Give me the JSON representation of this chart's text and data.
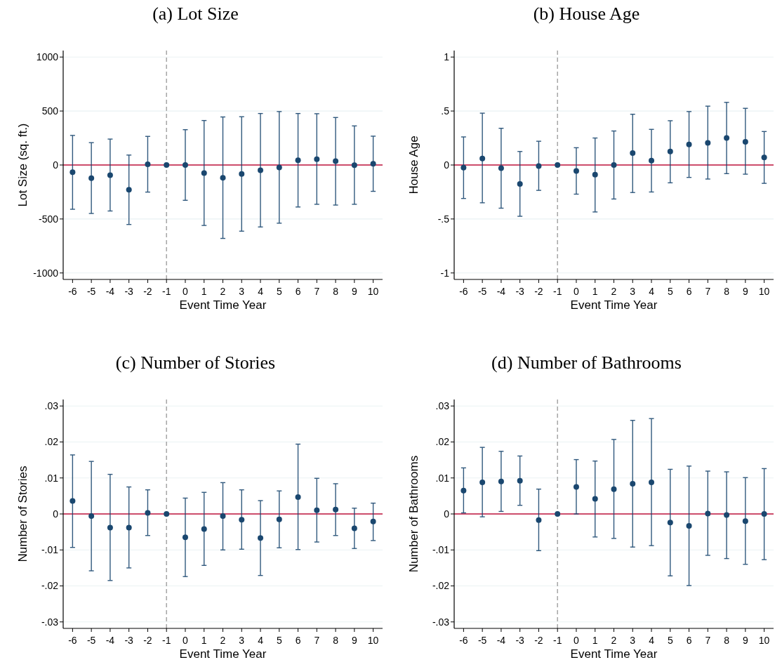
{
  "chart_data": [
    {
      "type": "scatter",
      "title": "(a) Lot Size",
      "xlabel": "Event Time Year",
      "ylabel": "Lot Size (sq. ft.)",
      "x": [
        -6,
        -5,
        -4,
        -3,
        -2,
        -1,
        0,
        1,
        2,
        3,
        4,
        5,
        6,
        7,
        8,
        9,
        10
      ],
      "xlim": [
        -6.5,
        10.5
      ],
      "xticks": [
        -6,
        -5,
        -4,
        -3,
        -2,
        -1,
        0,
        1,
        2,
        3,
        4,
        5,
        6,
        7,
        8,
        9,
        10
      ],
      "ylim": [
        -1060,
        1060
      ],
      "yticks": [
        -1000,
        -500,
        0,
        500,
        1000
      ],
      "grid": "y",
      "marker": "circle",
      "series": [
        {
          "color": "#1a476f",
          "values": [
            -67,
            -122,
            -94,
            -230,
            7,
            0,
            0,
            -74,
            -118,
            -83,
            -48,
            -23,
            44,
            53,
            35,
            -2,
            12
          ],
          "errors": [
            [
              -410,
              274
            ],
            [
              -449,
              207
            ],
            [
              -426,
              240
            ],
            [
              -551,
              92
            ],
            [
              -251,
              265
            ],
            null,
            [
              -327,
              327
            ],
            [
              -560,
              412
            ],
            [
              -680,
              445
            ],
            [
              -613,
              447
            ],
            [
              -574,
              477
            ],
            [
              -539,
              495
            ],
            [
              -389,
              477
            ],
            [
              -364,
              475
            ],
            [
              -371,
              440
            ],
            [
              -364,
              362
            ],
            [
              -244,
              267
            ]
          ]
        }
      ],
      "ref_lines": [
        {
          "axis": "x",
          "value": -1,
          "color": "#a6a6a6",
          "line_style": "dashed"
        },
        {
          "axis": "y",
          "value": 0,
          "color": "#c0143c",
          "line_style": "solid"
        }
      ]
    },
    {
      "type": "scatter",
      "title": "(b) House Age",
      "xlabel": "Event Time Year",
      "ylabel": "House Age",
      "x": [
        -6,
        -5,
        -4,
        -3,
        -2,
        -1,
        0,
        1,
        2,
        3,
        4,
        5,
        6,
        7,
        8,
        9,
        10
      ],
      "xlim": [
        -6.5,
        10.5
      ],
      "xticks": [
        -6,
        -5,
        -4,
        -3,
        -2,
        -1,
        0,
        1,
        2,
        3,
        4,
        5,
        6,
        7,
        8,
        9,
        10
      ],
      "ylim": [
        -1.06,
        1.06
      ],
      "yticks": [
        -1,
        {
          "value": -0.5,
          "label": "-.5"
        },
        0,
        {
          "value": 0.5,
          "label": ".5"
        },
        1
      ],
      "grid": "y",
      "marker": "circle",
      "series": [
        {
          "color": "#1a476f",
          "values": [
            -0.025,
            0.06,
            -0.03,
            -0.175,
            -0.01,
            0,
            -0.055,
            -0.09,
            0,
            0.11,
            0.04,
            0.125,
            0.19,
            0.205,
            0.25,
            0.215,
            0.07
          ],
          "errors": [
            [
              -0.31,
              0.26
            ],
            [
              -0.35,
              0.48
            ],
            [
              -0.4,
              0.34
            ],
            [
              -0.475,
              0.125
            ],
            [
              -0.235,
              0.22
            ],
            null,
            [
              -0.27,
              0.16
            ],
            [
              -0.435,
              0.25
            ],
            [
              -0.315,
              0.315
            ],
            [
              -0.255,
              0.47
            ],
            [
              -0.25,
              0.33
            ],
            [
              -0.165,
              0.41
            ],
            [
              -0.115,
              0.495
            ],
            [
              -0.13,
              0.545
            ],
            [
              -0.08,
              0.58
            ],
            [
              -0.085,
              0.525
            ],
            [
              -0.17,
              0.31
            ]
          ]
        }
      ],
      "ref_lines": [
        {
          "axis": "x",
          "value": -1,
          "color": "#a6a6a6",
          "line_style": "dashed"
        },
        {
          "axis": "y",
          "value": 0,
          "color": "#c0143c",
          "line_style": "solid"
        }
      ]
    },
    {
      "type": "scatter",
      "title": "(c) Number of Stories",
      "xlabel": "Event Time Year",
      "ylabel": "Number of Stories",
      "x": [
        -6,
        -5,
        -4,
        -3,
        -2,
        -1,
        0,
        1,
        2,
        3,
        4,
        5,
        6,
        7,
        8,
        9,
        10
      ],
      "xlim": [
        -6.5,
        10.5
      ],
      "xticks": [
        -6,
        -5,
        -4,
        -3,
        -2,
        -1,
        0,
        1,
        2,
        3,
        4,
        5,
        6,
        7,
        8,
        9,
        10
      ],
      "ylim": [
        -0.0318,
        0.0318
      ],
      "yticks": [
        {
          "value": -0.03,
          "label": "-.03"
        },
        {
          "value": -0.02,
          "label": "-.02"
        },
        {
          "value": -0.01,
          "label": "-.01"
        },
        0,
        {
          "value": 0.01,
          "label": ".01"
        },
        {
          "value": 0.02,
          "label": ".02"
        },
        {
          "value": 0.03,
          "label": ".03"
        }
      ],
      "grid": "y",
      "marker": "circle",
      "series": [
        {
          "color": "#1a476f",
          "values": [
            0.0036,
            -0.0006,
            -0.0038,
            -0.0038,
            0.0003,
            0,
            -0.0065,
            -0.0042,
            -0.0006,
            -0.0016,
            -0.0067,
            -0.0015,
            0.0047,
            0.001,
            0.0012,
            -0.004,
            -0.0021
          ],
          "errors": [
            [
              -0.0093,
              0.0164
            ],
            [
              -0.0158,
              0.0146
            ],
            [
              -0.0185,
              0.011
            ],
            [
              -0.015,
              0.0075
            ],
            [
              -0.006,
              0.0067
            ],
            null,
            [
              -0.0174,
              0.0044
            ],
            [
              -0.0143,
              0.006
            ],
            [
              -0.01,
              0.0087
            ],
            [
              -0.0098,
              0.0067
            ],
            [
              -0.0171,
              0.0037
            ],
            [
              -0.0094,
              0.0064
            ],
            [
              -0.0099,
              0.0194
            ],
            [
              -0.0078,
              0.0099
            ],
            [
              -0.006,
              0.0084
            ],
            [
              -0.0096,
              0.0016
            ],
            [
              -0.0074,
              0.003
            ]
          ]
        }
      ],
      "ref_lines": [
        {
          "axis": "x",
          "value": -1,
          "color": "#a6a6a6",
          "line_style": "dashed"
        },
        {
          "axis": "y",
          "value": 0,
          "color": "#c0143c",
          "line_style": "solid"
        }
      ]
    },
    {
      "type": "scatter",
      "title": "(d) Number of Bathrooms",
      "xlabel": "Event Time Year",
      "ylabel": "Number of Bathrooms",
      "x": [
        -6,
        -5,
        -4,
        -3,
        -2,
        -1,
        0,
        1,
        2,
        3,
        4,
        5,
        6,
        7,
        8,
        9,
        10
      ],
      "xlim": [
        -6.5,
        10.5
      ],
      "xticks": [
        -6,
        -5,
        -4,
        -3,
        -2,
        -1,
        0,
        1,
        2,
        3,
        4,
        5,
        6,
        7,
        8,
        9,
        10
      ],
      "ylim": [
        -0.0318,
        0.0318
      ],
      "yticks": [
        {
          "value": -0.03,
          "label": "-.03"
        },
        {
          "value": -0.02,
          "label": "-.02"
        },
        {
          "value": -0.01,
          "label": "-.01"
        },
        0,
        {
          "value": 0.01,
          "label": ".01"
        },
        {
          "value": 0.02,
          "label": ".02"
        },
        {
          "value": 0.03,
          "label": ".03"
        }
      ],
      "grid": "y",
      "marker": "circle",
      "series": [
        {
          "color": "#1a476f",
          "values": [
            0.0065,
            0.0088,
            0.009,
            0.0092,
            -0.0017,
            0,
            0.0075,
            0.0042,
            0.0069,
            0.0084,
            0.0088,
            -0.0024,
            -0.0033,
            0.0001,
            -0.0003,
            -0.002,
            0
          ],
          "errors": [
            [
              0.0003,
              0.0128
            ],
            [
              -0.0008,
              0.0185
            ],
            [
              0.0007,
              0.0174
            ],
            [
              0.0024,
              0.0161
            ],
            [
              -0.0102,
              0.0069
            ],
            null,
            [
              0,
              0.0151
            ],
            [
              -0.0064,
              0.0147
            ],
            [
              -0.0068,
              0.0207
            ],
            [
              -0.0092,
              0.026
            ],
            [
              -0.0088,
              0.0265
            ],
            [
              -0.0172,
              0.0124
            ],
            [
              -0.0199,
              0.0133
            ],
            [
              -0.0115,
              0.0119
            ],
            [
              -0.0124,
              0.0117
            ],
            [
              -0.014,
              0.0101
            ],
            [
              -0.0127,
              0.0126
            ]
          ]
        }
      ],
      "ref_lines": [
        {
          "axis": "x",
          "value": -1,
          "color": "#a6a6a6",
          "line_style": "dashed"
        },
        {
          "axis": "y",
          "value": 0,
          "color": "#c0143c",
          "line_style": "solid"
        }
      ]
    }
  ]
}
